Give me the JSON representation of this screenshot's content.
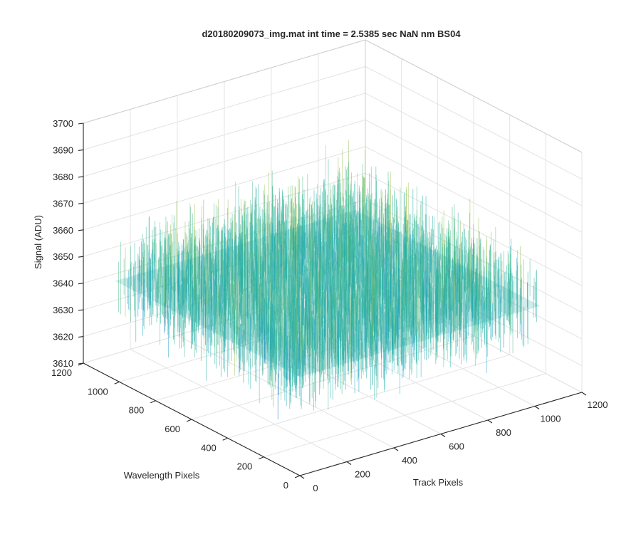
{
  "chart_data": {
    "type": "surface",
    "title": "d20180209073_img.mat int time = 2.5385 sec  NaN nm BS04",
    "xlabel": "Track Pixels",
    "ylabel": "Wavelength Pixels",
    "zlabel": "Signal (ADU)",
    "xlim": [
      0,
      1200
    ],
    "ylim": [
      0,
      1200
    ],
    "zlim": [
      3610,
      3700
    ],
    "x_ticks": [
      "0",
      "200",
      "400",
      "600",
      "800",
      "1000",
      "1200"
    ],
    "y_ticks": [
      "0",
      "200",
      "400",
      "600",
      "800",
      "1000",
      "1200"
    ],
    "z_ticks": [
      "3610",
      "3620",
      "3630",
      "3640",
      "3650",
      "3660",
      "3670",
      "3680",
      "3690",
      "3700"
    ],
    "data_extent": {
      "x_max": 1024,
      "y_max": 1024
    },
    "signal_mean": 3650,
    "signal_noise_range": [
      3618,
      3695
    ],
    "grid": true,
    "colormap": [
      "#1f77b4",
      "#1a9ec4",
      "#22b0a8",
      "#4cbb8c",
      "#96c35a",
      "#d8bd3c"
    ]
  }
}
